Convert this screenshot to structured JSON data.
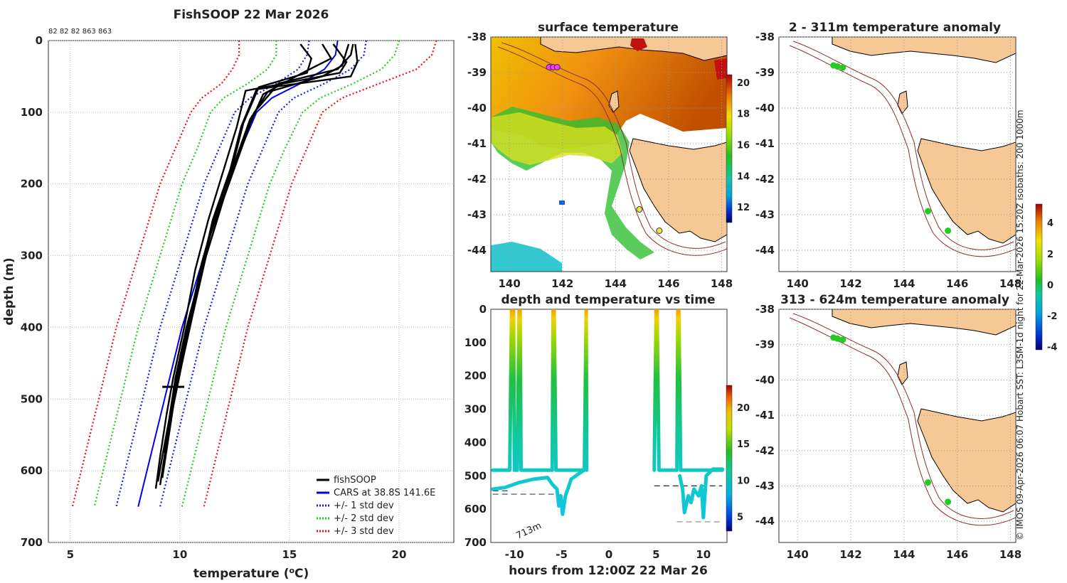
{
  "chart_data": [
    {
      "type": "line",
      "title": "FishSOOP 22 Mar 2026",
      "subtitle": "82 82 82 863 863",
      "xlabel": "temperature (",
      "xlabel_sup": "o",
      "xlabel_end": "C)",
      "ylabel": "depth (m)",
      "xlim": [
        4,
        22.5
      ],
      "ylim": [
        0,
        700
      ],
      "xticks": [
        5,
        10,
        15,
        20
      ],
      "yticks": [
        0,
        100,
        200,
        300,
        400,
        500,
        600,
        700
      ],
      "grid": true,
      "legend_position": "bottom-right",
      "legend": [
        {
          "label": "fishSOOP",
          "color": "#000000",
          "style": "solid"
        },
        {
          "label": "CARS at 38.8S 141.6E",
          "color": "#0000ee",
          "style": "solid"
        },
        {
          "label": "+/- 1 std dev",
          "color": "#1a1aee",
          "style": "dotted"
        },
        {
          "label": "+/- 2 std dev",
          "color": "#22cc22",
          "style": "dotted"
        },
        {
          "label": "+/- 3 std dev",
          "color": "#ee1111",
          "style": "dotted"
        }
      ],
      "depths": [
        0,
        20,
        40,
        60,
        80,
        100,
        150,
        200,
        250,
        300,
        350,
        400,
        450,
        500,
        550,
        600,
        650
      ],
      "cars_mean": [
        17.2,
        17.1,
        16.6,
        15.5,
        14.2,
        13.5,
        12.8,
        12.1,
        11.6,
        11.1,
        10.6,
        10.1,
        9.7,
        9.3,
        8.9,
        8.5,
        8.1
      ],
      "std_offsets": [
        {
          "name": "+1 std",
          "series": "1",
          "color": "#1a1aee",
          "offset": [
            1.3,
            1.3,
            1.2,
            1.1,
            1.0,
            1.0,
            1.0,
            1.0,
            1.0,
            1.0,
            1.0,
            1.0,
            1.0,
            1.0,
            1.0,
            1.0,
            1.0
          ]
        },
        {
          "name": "+2 std",
          "series": "2",
          "color": "#22cc22",
          "offset": [
            2.8,
            2.7,
            2.6,
            2.4,
            2.2,
            2.1,
            2.0,
            2.0,
            2.0,
            2.0,
            2.0,
            2.0,
            2.0,
            2.0,
            2.0,
            2.0,
            2.0
          ]
        },
        {
          "name": "+3 std",
          "series": "3",
          "color": "#ee1111",
          "offset": [
            4.5,
            4.4,
            4.2,
            3.6,
            3.2,
            3.0,
            3.0,
            3.0,
            3.0,
            3.0,
            3.0,
            3.0,
            3.0,
            3.0,
            3.0,
            3.0,
            3.0
          ]
        }
      ],
      "fishsoop_profiles": [
        {
          "name": "profile 1",
          "points": [
            [
              17.0,
              5
            ],
            [
              17.6,
              30
            ],
            [
              17.3,
              45
            ],
            [
              13.0,
              70
            ],
            [
              12.6,
              120
            ],
            [
              12.0,
              180
            ],
            [
              11.3,
              250
            ],
            [
              10.7,
              320
            ],
            [
              10.2,
              400
            ],
            [
              9.7,
              470
            ],
            [
              9.4,
              520
            ],
            [
              9.1,
              580
            ],
            [
              8.9,
              625
            ]
          ]
        },
        {
          "name": "profile 2",
          "points": [
            [
              18.0,
              5
            ],
            [
              18.1,
              30
            ],
            [
              17.8,
              50
            ],
            [
              13.5,
              68
            ],
            [
              12.8,
              120
            ],
            [
              12.3,
              180
            ],
            [
              11.5,
              250
            ],
            [
              10.9,
              330
            ],
            [
              10.3,
              400
            ],
            [
              9.8,
              470
            ],
            [
              9.5,
              530
            ],
            [
              9.2,
              580
            ],
            [
              9.0,
              615
            ]
          ]
        },
        {
          "name": "profile 3",
          "points": [
            [
              17.7,
              5
            ],
            [
              17.4,
              35
            ],
            [
              16.5,
              50
            ],
            [
              14.0,
              72
            ],
            [
              13.2,
              110
            ],
            [
              12.5,
              170
            ],
            [
              11.8,
              240
            ],
            [
              11.0,
              320
            ],
            [
              10.5,
              390
            ],
            [
              10.0,
              460
            ],
            [
              9.6,
              520
            ],
            [
              9.3,
              580
            ],
            [
              9.1,
              620
            ]
          ]
        },
        {
          "name": "profile 4",
          "points": [
            [
              16.5,
              5
            ],
            [
              16.9,
              25
            ],
            [
              15.6,
              45
            ],
            [
              13.8,
              75
            ],
            [
              13.0,
              130
            ],
            [
              12.2,
              200
            ],
            [
              11.4,
              270
            ],
            [
              10.8,
              340
            ],
            [
              10.3,
              410
            ],
            [
              9.9,
              470
            ],
            [
              9.5,
              540
            ],
            [
              9.2,
              600
            ]
          ]
        },
        {
          "name": "profile 5",
          "points": [
            [
              17.9,
              5
            ],
            [
              17.8,
              20
            ],
            [
              17.2,
              40
            ],
            [
              14.5,
              60
            ],
            [
              13.4,
              100
            ],
            [
              12.7,
              160
            ],
            [
              12.0,
              220
            ],
            [
              11.2,
              300
            ],
            [
              10.6,
              380
            ],
            [
              10.1,
              450
            ],
            [
              9.7,
              510
            ],
            [
              9.4,
              570
            ],
            [
              9.2,
              610
            ]
          ]
        },
        {
          "name": "profile 6",
          "points": [
            [
              15.5,
              5
            ],
            [
              16.0,
              25
            ],
            [
              15.8,
              45
            ],
            [
              13.6,
              65
            ],
            [
              12.9,
              115
            ],
            [
              12.4,
              175
            ],
            [
              11.6,
              245
            ],
            [
              11.0,
              310
            ],
            [
              10.4,
              395
            ],
            [
              9.9,
              460
            ],
            [
              9.6,
              515
            ],
            [
              9.3,
              575
            ]
          ]
        }
      ]
    },
    {
      "type": "heatmap",
      "title": "surface temperature",
      "xlim": [
        139.3,
        148.2
      ],
      "ylim": [
        -44.6,
        -38
      ],
      "xticks": [
        140,
        142,
        144,
        146,
        148
      ],
      "yticks": [
        -38,
        -39,
        -40,
        -41,
        -42,
        -43,
        -44
      ],
      "colorbar": {
        "min": 11,
        "max": 20.5,
        "ticks": [
          12,
          14,
          16,
          18,
          20
        ]
      },
      "stations": [
        {
          "lon": 141.5,
          "lat": -38.85,
          "color": "#ff33ff"
        },
        {
          "lon": 141.65,
          "lat": -38.85,
          "color": "#ff33ff"
        },
        {
          "lon": 141.8,
          "lat": -38.85,
          "color": "#ff33ff"
        },
        {
          "lon": 144.9,
          "lat": -42.85,
          "color": "#e8e840"
        },
        {
          "lon": 145.65,
          "lat": -43.45,
          "color": "#e8e840"
        }
      ]
    },
    {
      "type": "line",
      "title": "depth and temperature vs time",
      "xlabel": "hours from 12:00Z 22 Mar 26",
      "xlim": [
        -12.5,
        12.5
      ],
      "ylim": [
        0,
        700
      ],
      "xticks": [
        -10,
        -5,
        0,
        5,
        10
      ],
      "yticks": [
        0,
        100,
        200,
        300,
        400,
        500,
        600,
        700
      ],
      "colorbar": {
        "min": 3,
        "max": 23,
        "ticks": [
          5,
          10,
          15,
          20
        ]
      },
      "annotation": "713m",
      "track_segments": [
        [
          [
            -12.3,
            483
          ],
          [
            -10.5,
            483
          ],
          [
            -10.3,
            0
          ],
          [
            -10.1,
            0
          ],
          [
            -10.0,
            483
          ],
          [
            -9.7,
            483
          ],
          [
            -9.5,
            0
          ],
          [
            -9.4,
            0
          ],
          [
            -9.3,
            483
          ],
          [
            -6.0,
            483
          ],
          [
            -5.9,
            0
          ],
          [
            -5.8,
            0
          ],
          [
            -5.6,
            483
          ],
          [
            -3.0,
            483
          ],
          [
            -2.6,
            483
          ],
          [
            -2.4,
            0
          ],
          [
            -2.35,
            483
          ]
        ],
        [
          [
            -12.3,
            540
          ],
          [
            -11.0,
            535
          ],
          [
            -9.5,
            520
          ],
          [
            -8.0,
            510
          ],
          [
            -6.5,
            505
          ],
          [
            -6.0,
            525
          ],
          [
            -5.5,
            540
          ],
          [
            -5.3,
            590
          ],
          [
            -5.1,
            560
          ],
          [
            -4.9,
            615
          ],
          [
            -4.6,
            560
          ],
          [
            -4.0,
            510
          ],
          [
            -3.5,
            500
          ],
          [
            -2.5,
            480
          ]
        ],
        [
          [
            4.8,
            483
          ],
          [
            5.0,
            0
          ],
          [
            5.1,
            0
          ],
          [
            5.3,
            483
          ],
          [
            7.2,
            483
          ],
          [
            7.3,
            0
          ],
          [
            7.4,
            0
          ],
          [
            7.6,
            483
          ],
          [
            12.0,
            483
          ]
        ],
        [
          [
            7.5,
            500
          ],
          [
            7.8,
            540
          ],
          [
            8.0,
            610
          ],
          [
            8.4,
            560
          ],
          [
            8.7,
            580
          ],
          [
            9.0,
            540
          ],
          [
            9.5,
            560
          ],
          [
            9.8,
            530
          ],
          [
            10.0,
            625
          ],
          [
            10.3,
            500
          ],
          [
            11.0,
            480
          ],
          [
            12.0,
            480
          ]
        ]
      ],
      "reference_lines": [
        {
          "x": [
            -12.3,
            -10.5
          ],
          "y": 545,
          "color": "#444444"
        },
        {
          "x": [
            -12.3,
            -5.5
          ],
          "y": 555,
          "color": "#444444"
        },
        {
          "x": [
            4.8,
            12.0
          ],
          "y": 530,
          "color": "#222222"
        },
        {
          "x": [
            7.2,
            12.0
          ],
          "y": 638,
          "color": "#888888"
        }
      ]
    },
    {
      "type": "scatter",
      "title": "2 - 311m temperature anomaly",
      "xlim": [
        139.3,
        148.2
      ],
      "ylim": [
        -44.6,
        -38
      ],
      "xticks": [
        140,
        142,
        144,
        146,
        148
      ],
      "yticks": [
        -38,
        -39,
        -40,
        -41,
        -42,
        -43,
        -44
      ],
      "points": [
        [
          141.35,
          -38.8
        ],
        [
          141.5,
          -38.83
        ],
        [
          141.7,
          -38.86
        ],
        [
          144.9,
          -42.9
        ],
        [
          145.65,
          -43.45
        ]
      ],
      "colorbar": {
        "min": -4.2,
        "max": 5.2,
        "ticks": [
          4,
          2,
          0,
          -2,
          -4
        ]
      }
    },
    {
      "type": "scatter",
      "title": "313 - 624m temperature anomaly",
      "xlim": [
        139.3,
        148.2
      ],
      "ylim": [
        -44.6,
        -38
      ],
      "xticks": [
        140,
        142,
        144,
        146,
        148
      ],
      "yticks": [
        -38,
        -39,
        -40,
        -41,
        -42,
        -43,
        -44
      ],
      "points": [
        [
          141.35,
          -38.8
        ],
        [
          141.5,
          -38.83
        ],
        [
          141.7,
          -38.86
        ],
        [
          144.9,
          -42.9
        ],
        [
          145.65,
          -43.45
        ]
      ]
    }
  ],
  "credit": "© IMOS 09-Apr-2026 06:07 Hobart SST: L3SM-1d night for 22-Mar-2026 15:20Z isobaths: 200  1000m"
}
